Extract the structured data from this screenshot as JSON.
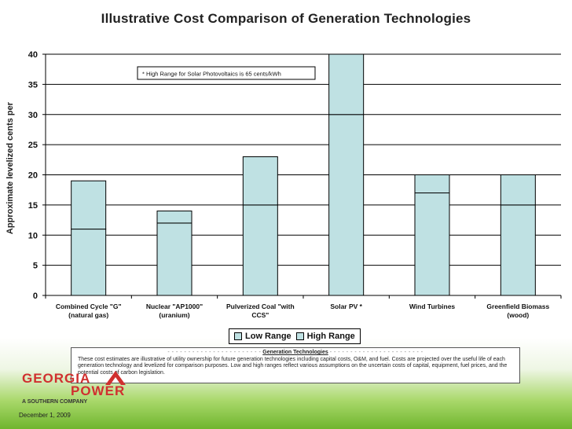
{
  "chart_data": {
    "type": "bar",
    "stacked": true,
    "title": "Illustrative Cost Comparison of Generation Technologies",
    "ylabel": "Approximate levelized cents per",
    "ylim": [
      0,
      40
    ],
    "yticks": [
      0,
      5,
      10,
      15,
      20,
      25,
      30,
      35,
      40
    ],
    "grid": true,
    "legend_position": "bottom",
    "categories": [
      [
        "Combined Cycle \"G\"",
        "(natural gas)"
      ],
      [
        "Nuclear \"AP1000\"",
        "(uranium)"
      ],
      [
        "Pulverized Coal \"with",
        "CCS\""
      ],
      [
        "Solar PV *"
      ],
      [
        "Wind Turbines"
      ],
      [
        "Greenfield Biomass",
        "(wood)"
      ]
    ],
    "series": [
      {
        "name": "Low Range",
        "values": [
          11,
          12,
          15,
          30,
          17,
          15
        ]
      },
      {
        "name": "High Range",
        "values": [
          8,
          2,
          8,
          10,
          3,
          5
        ]
      }
    ],
    "colors": {
      "bar_fill": "#bfe1e3",
      "bar_stroke": "#000000"
    },
    "annotation": "* High Range for Solar Photovoltaics is 65 cents/kWh"
  },
  "note": {
    "dash_left": "- - - - - -  - - - - - - - - - - - - - - - - -",
    "heading": "Generation Technologies",
    "dash_right": "- - - - -  - - - - - - - - - - - - - - - - - -",
    "body": "These cost estimates are illustrative of utility ownership for future generation technologies including capital costs, O&M, and fuel.  Costs are projected over the useful life of each generation technology and levelized for comparison purposes.  Low and high ranges reflect various assumptions on the uncertain costs of capital, equipment, fuel prices, and the potential costs of carbon legislation."
  },
  "logo": {
    "name": "GEORGIA",
    "power": "POWER",
    "tagline": "A SOUTHERN COMPANY",
    "accent_color": "#d0302f"
  },
  "date": "December 1, 2009"
}
